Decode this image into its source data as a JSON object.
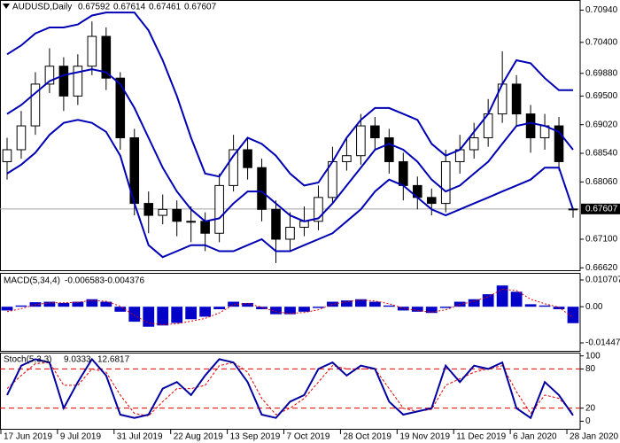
{
  "chart_data": [
    {
      "type": "candlestick",
      "title": "AUDUSD,Daily",
      "categories": [
        "17 Jun 2019",
        null,
        null,
        null,
        "9 Jul 2019",
        null,
        null,
        null,
        "31 Jul 2019",
        null,
        null,
        null,
        "22 Aug 2019",
        null,
        null,
        null,
        "13 Sep 2019",
        null,
        null,
        null,
        "7 Oct 2019",
        null,
        null,
        null,
        "28 Oct 2019",
        null,
        null,
        null,
        "19 Nov 2019",
        null,
        null,
        null,
        "11 Dec 2019",
        null,
        null,
        null,
        "6 Jan 2020",
        null,
        null,
        null,
        "28 Jan 2020"
      ],
      "open": [
        0.684,
        0.686,
        0.69,
        0.697,
        0.7,
        0.695,
        0.7,
        0.705,
        0.698,
        0.688,
        0.677,
        0.675,
        0.676,
        0.674,
        0.674,
        0.672,
        0.68,
        0.686,
        0.683,
        0.676,
        0.671,
        0.673,
        0.674,
        0.678,
        0.684,
        0.685,
        0.69,
        0.688,
        0.684,
        0.68,
        0.678,
        0.677,
        0.684,
        0.686,
        0.688,
        0.692,
        0.697,
        0.692,
        0.688,
        0.69,
        0.67592
      ],
      "high": [
        0.688,
        0.6925,
        0.699,
        0.703,
        0.7015,
        0.702,
        0.7075,
        0.7065,
        0.699,
        0.6895,
        0.679,
        0.6785,
        0.6775,
        0.6765,
        0.6755,
        0.682,
        0.6885,
        0.688,
        0.6845,
        0.6775,
        0.6755,
        0.6765,
        0.68,
        0.6865,
        0.688,
        0.692,
        0.6915,
        0.6895,
        0.6855,
        0.6815,
        0.6795,
        0.686,
        0.6885,
        0.6905,
        0.6945,
        0.7025,
        0.6985,
        0.6935,
        0.692,
        0.6915,
        0.67614
      ],
      "low": [
        0.681,
        0.6845,
        0.6885,
        0.6955,
        0.6925,
        0.6935,
        0.6985,
        0.696,
        0.686,
        0.675,
        0.672,
        0.6735,
        0.6715,
        0.6705,
        0.669,
        0.6705,
        0.679,
        0.681,
        0.674,
        0.667,
        0.669,
        0.6715,
        0.6725,
        0.677,
        0.6825,
        0.6835,
        0.686,
        0.682,
        0.6775,
        0.676,
        0.675,
        0.6755,
        0.682,
        0.6845,
        0.6865,
        0.6905,
        0.69,
        0.6855,
        0.686,
        0.6825,
        0.67461
      ],
      "close": [
        0.686,
        0.69,
        0.697,
        0.7,
        0.695,
        0.7,
        0.705,
        0.698,
        0.688,
        0.677,
        0.675,
        0.676,
        0.674,
        0.674,
        0.672,
        0.68,
        0.686,
        0.683,
        0.676,
        0.671,
        0.673,
        0.674,
        0.678,
        0.684,
        0.685,
        0.69,
        0.688,
        0.684,
        0.68,
        0.678,
        0.677,
        0.684,
        0.686,
        0.688,
        0.692,
        0.697,
        0.692,
        0.688,
        0.69,
        0.684,
        0.67607
      ],
      "bands": {
        "color": "#0000b4",
        "upper": [
          0.702,
          0.7035,
          0.7055,
          0.7065,
          0.7065,
          0.707,
          0.7085,
          0.709,
          0.709,
          0.709,
          0.706,
          0.701,
          0.695,
          0.688,
          0.682,
          0.6815,
          0.685,
          0.688,
          0.687,
          0.685,
          0.682,
          0.68,
          0.6805,
          0.684,
          0.688,
          0.691,
          0.693,
          0.693,
          0.692,
          0.691,
          0.687,
          0.685,
          0.686,
          0.689,
          0.692,
          0.697,
          0.701,
          0.7005,
          0.698,
          0.696,
          0.696
        ],
        "middle": [
          0.692,
          0.6935,
          0.6955,
          0.6975,
          0.6985,
          0.699,
          0.6995,
          0.699,
          0.697,
          0.693,
          0.688,
          0.683,
          0.679,
          0.676,
          0.674,
          0.6745,
          0.677,
          0.679,
          0.679,
          0.677,
          0.675,
          0.674,
          0.6745,
          0.677,
          0.68,
          0.683,
          0.686,
          0.687,
          0.686,
          0.684,
          0.681,
          0.679,
          0.68,
          0.682,
          0.684,
          0.687,
          0.69,
          0.6905,
          0.69,
          0.689,
          0.686
        ],
        "lower": [
          0.682,
          0.6835,
          0.6855,
          0.6885,
          0.6905,
          0.691,
          0.6905,
          0.689,
          0.685,
          0.677,
          0.67,
          0.668,
          0.669,
          0.67,
          0.67,
          0.669,
          0.669,
          0.67,
          0.671,
          0.669,
          0.669,
          0.67,
          0.671,
          0.672,
          0.674,
          0.676,
          0.679,
          0.681,
          0.68,
          0.678,
          0.676,
          0.675,
          0.676,
          0.677,
          0.678,
          0.679,
          0.68,
          0.681,
          0.683,
          0.683,
          0.676
        ]
      },
      "ylim": [
        0.6658,
        0.7108
      ],
      "yticks": [
        {
          "value": 0.7094,
          "label": "0.70940"
        },
        {
          "value": 0.704,
          "label": "0.70400"
        },
        {
          "value": 0.6988,
          "label": "0.69880"
        },
        {
          "value": 0.695,
          "label": "0.69500"
        },
        {
          "value": 0.6902,
          "label": "0.69020"
        },
        {
          "value": 0.6854,
          "label": "0.68540"
        },
        {
          "value": 0.6806,
          "label": "0.68060"
        },
        {
          "value": 0.671,
          "label": "0.67100"
        },
        {
          "value": 0.6662,
          "label": "0.66620"
        }
      ]
    },
    {
      "type": "macd",
      "title": "MACD(5,34,4)",
      "color": "#0000c8",
      "signal_color": "#e00000",
      "values": [
        -0.0015,
        0.0005,
        0.0018,
        0.002,
        0.0015,
        0.002,
        0.003,
        0.002,
        -0.002,
        -0.006,
        -0.008,
        -0.0075,
        -0.0065,
        -0.005,
        -0.004,
        -0.001,
        0.002,
        0.0015,
        -0.001,
        -0.003,
        -0.003,
        -0.002,
        -0.0005,
        0.002,
        0.0025,
        0.003,
        0.002,
        0.0005,
        -0.0015,
        -0.002,
        -0.0025,
        -0.0005,
        0.002,
        0.003,
        0.005,
        0.0085,
        0.006,
        0.001,
        0.0005,
        -0.001,
        -0.006583
      ],
      "signal": [
        -0.002,
        -0.0008,
        0.0008,
        0.0016,
        0.0016,
        0.0018,
        0.0025,
        0.0022,
        0.0002,
        -0.0035,
        -0.0065,
        -0.0072,
        -0.0068,
        -0.0058,
        -0.0047,
        -0.0025,
        0.0008,
        0.0013,
        -0.0002,
        -0.002,
        -0.0027,
        -0.0023,
        -0.0012,
        0.001,
        0.002,
        0.0027,
        0.0023,
        0.0012,
        -0.0006,
        -0.0015,
        -0.0022,
        -0.0012,
        0.0008,
        0.0022,
        0.004,
        0.007,
        0.0065,
        0.003,
        0.0012,
        -0.0002,
        -0.004376
      ],
      "ylim": [
        -0.01732,
        0.01284
      ],
      "yticks": [
        0.010707,
        {
          "value": 0,
          "label": "0.00"
        },
        -0.014479
      ]
    },
    {
      "type": "stochastic",
      "title": "Stoch(5,3,3)",
      "color": "#0000a0",
      "signal_color": "#e00000",
      "k": [
        40,
        85,
        95,
        90,
        20,
        60,
        95,
        70,
        10,
        5,
        10,
        50,
        60,
        40,
        70,
        95,
        90,
        60,
        10,
        5,
        30,
        40,
        80,
        90,
        70,
        85,
        80,
        30,
        10,
        15,
        20,
        85,
        60,
        85,
        80,
        90,
        20,
        5,
        60,
        40,
        9.0333
      ],
      "d": [
        50,
        70,
        88,
        90,
        55,
        55,
        80,
        75,
        40,
        12,
        8,
        30,
        50,
        50,
        55,
        85,
        90,
        75,
        35,
        10,
        20,
        35,
        60,
        85,
        80,
        80,
        80,
        50,
        20,
        15,
        18,
        55,
        65,
        75,
        80,
        85,
        45,
        12,
        40,
        35,
        12.6817
      ],
      "levels": [
        80,
        20
      ],
      "ylim": [
        -13,
        105
      ],
      "yticks": [
        100,
        80,
        20,
        0
      ]
    }
  ]
}
